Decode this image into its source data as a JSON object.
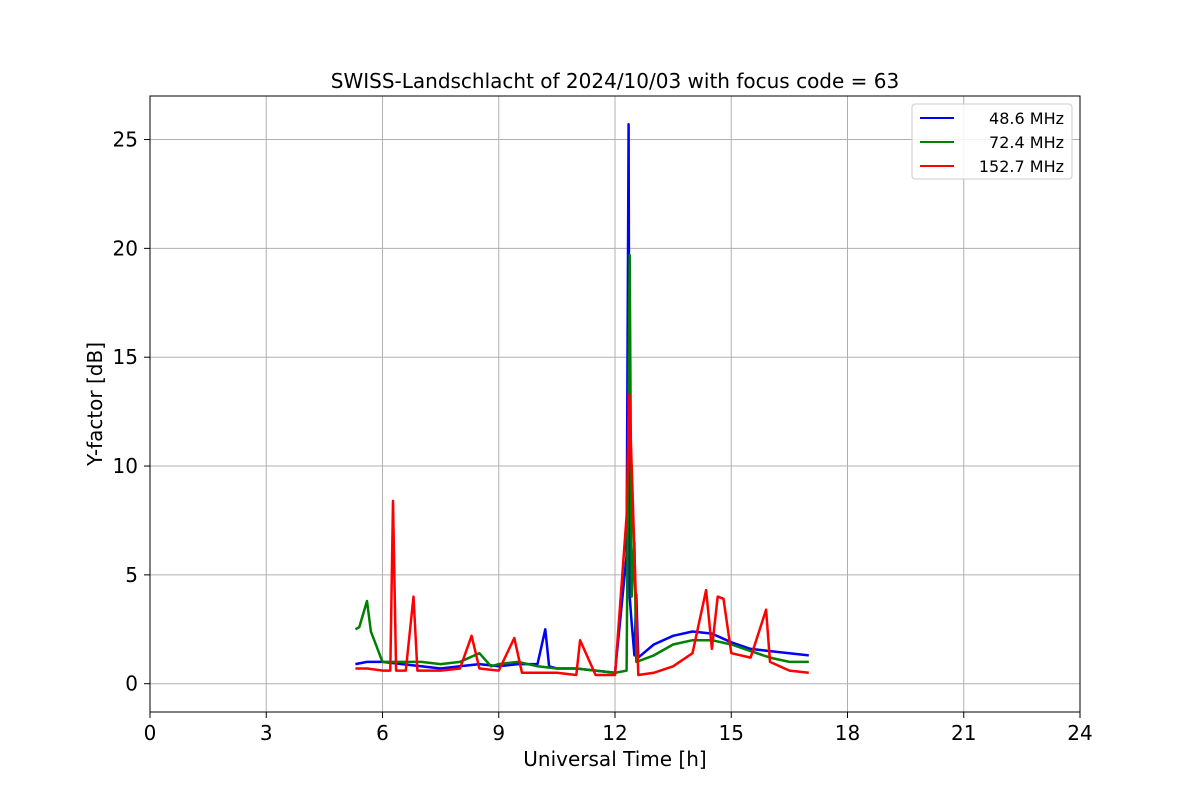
{
  "chart_data": {
    "type": "line",
    "title": "SWISS-Landschlacht of 2024/10/03 with focus code = 63",
    "xlabel": "Universal Time [h]",
    "ylabel": "Y-factor [dB]",
    "xlim": [
      0,
      24
    ],
    "ylim": [
      -1.3,
      27
    ],
    "xticks": [
      0,
      3,
      6,
      9,
      12,
      15,
      18,
      21,
      24
    ],
    "yticks": [
      0,
      5,
      10,
      15,
      20,
      25
    ],
    "xtick_labels": [
      "0",
      "3",
      "6",
      "9",
      "12",
      "15",
      "18",
      "21",
      "24"
    ],
    "ytick_labels": [
      "0",
      "5",
      "10",
      "15",
      "20",
      "25"
    ],
    "grid": true,
    "legend_position": "top-right",
    "series": [
      {
        "name": "48.6 MHz",
        "color": "#0000ff",
        "x": [
          5.3,
          5.6,
          6.0,
          6.5,
          7.0,
          7.5,
          8.0,
          8.5,
          9.0,
          9.5,
          10.0,
          10.2,
          10.3,
          10.5,
          11.0,
          11.5,
          12.0,
          12.3,
          12.35,
          12.38,
          12.42,
          12.5,
          12.55,
          12.6,
          12.8,
          13.0,
          13.5,
          14.0,
          14.5,
          15.0,
          15.5,
          16.0,
          16.5,
          17.0
        ],
        "y": [
          0.9,
          1.0,
          1.0,
          0.9,
          0.8,
          0.7,
          0.8,
          0.9,
          0.8,
          0.9,
          0.9,
          2.5,
          0.8,
          0.7,
          0.7,
          0.6,
          0.5,
          5.9,
          25.7,
          4.0,
          3.0,
          1.3,
          4.1,
          1.2,
          1.5,
          1.8,
          2.2,
          2.4,
          2.3,
          1.9,
          1.6,
          1.5,
          1.4,
          1.3
        ]
      },
      {
        "name": "72.4 MHz",
        "color": "#008000",
        "x": [
          5.3,
          5.4,
          5.6,
          5.7,
          6.0,
          6.5,
          7.0,
          7.5,
          8.0,
          8.5,
          8.8,
          9.0,
          9.5,
          10.0,
          10.5,
          11.0,
          11.5,
          12.0,
          12.3,
          12.38,
          12.43,
          12.5,
          12.55,
          12.7,
          13.0,
          13.5,
          14.0,
          14.5,
          15.0,
          15.5,
          16.0,
          16.5,
          17.0
        ],
        "y": [
          2.5,
          2.6,
          3.8,
          2.4,
          1.0,
          1.0,
          1.0,
          0.9,
          1.0,
          1.4,
          0.8,
          0.9,
          1.0,
          0.8,
          0.7,
          0.7,
          0.6,
          0.5,
          0.6,
          19.7,
          4.0,
          6.5,
          1.0,
          1.1,
          1.3,
          1.8,
          2.0,
          2.0,
          1.8,
          1.5,
          1.2,
          1.0,
          1.0
        ]
      },
      {
        "name": "152.7 MHz",
        "color": "#ff0000",
        "x": [
          5.3,
          5.6,
          6.0,
          6.2,
          6.27,
          6.35,
          6.6,
          6.8,
          6.9,
          7.0,
          7.5,
          8.0,
          8.3,
          8.5,
          9.0,
          9.4,
          9.6,
          10.0,
          10.5,
          11.0,
          11.1,
          11.5,
          12.0,
          12.3,
          12.37,
          12.45,
          12.6,
          13.0,
          13.5,
          14.0,
          14.35,
          14.5,
          14.65,
          14.8,
          15.0,
          15.5,
          15.9,
          16.0,
          16.5,
          17.0
        ],
        "y": [
          0.7,
          0.7,
          0.6,
          0.6,
          8.4,
          0.6,
          0.6,
          4.0,
          0.6,
          0.6,
          0.6,
          0.7,
          2.2,
          0.7,
          0.6,
          2.1,
          0.5,
          0.5,
          0.5,
          0.4,
          2.0,
          0.4,
          0.4,
          7.7,
          13.3,
          9.0,
          0.4,
          0.5,
          0.8,
          1.4,
          4.3,
          1.6,
          4.0,
          3.9,
          1.4,
          1.2,
          3.4,
          1.0,
          0.6,
          0.5
        ]
      }
    ]
  }
}
